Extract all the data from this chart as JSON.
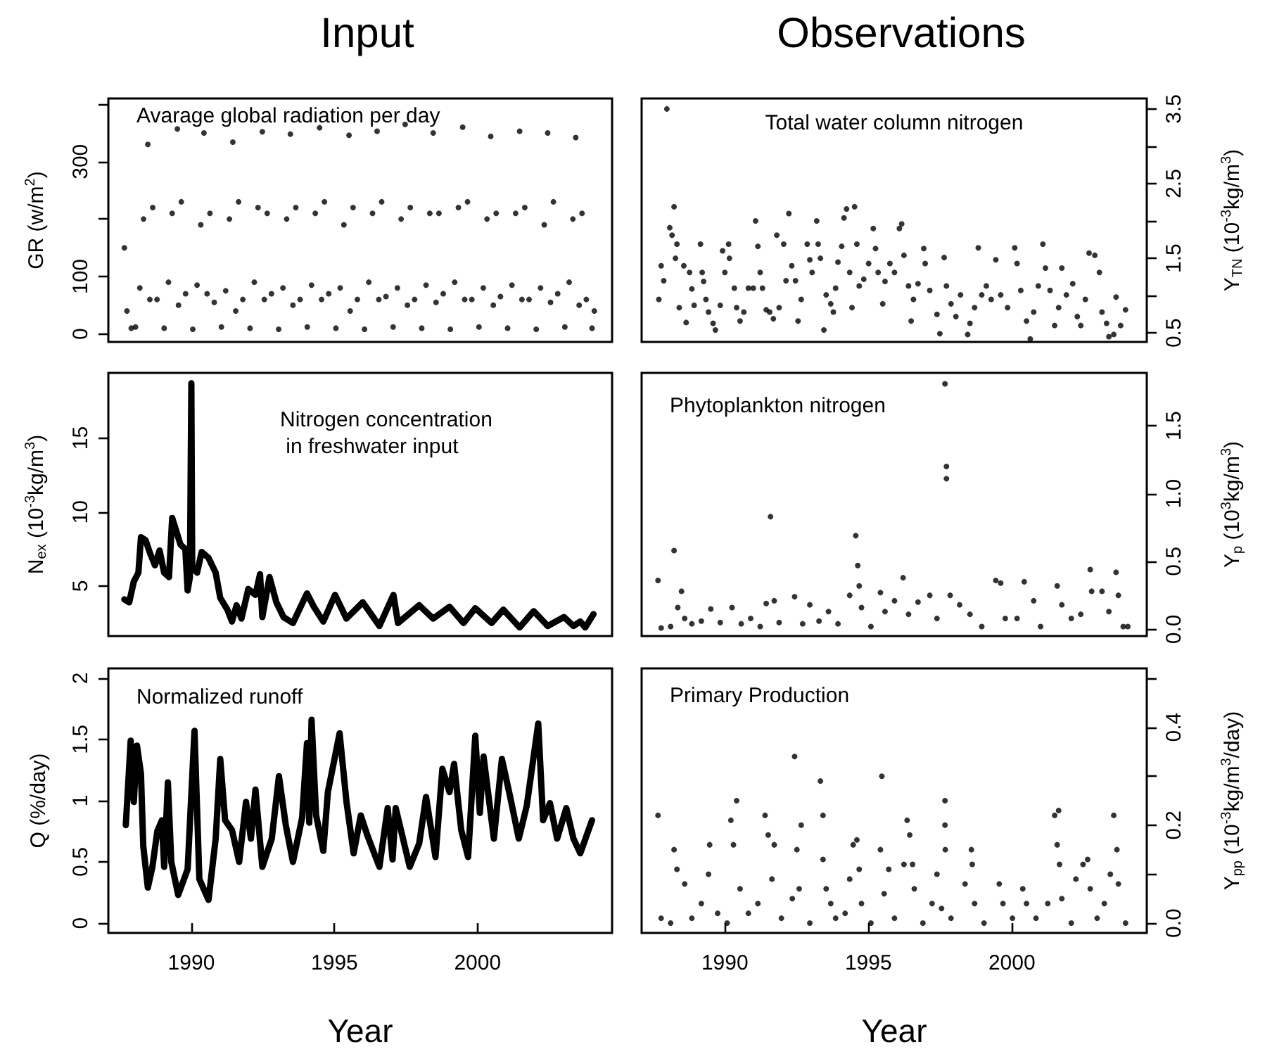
{
  "chart_data": [
    {
      "type": "scatter",
      "title": "Input",
      "ylabel": "GR (w/m$^{2}$)",
      "annotations": [
        "Avarage global radiation per day"
      ],
      "marker": "circle",
      "tick_labels": "y",
      "xlim": [
        1987.1,
        2004.7
      ],
      "ylim": [
        -14,
        410
      ],
      "yticks": [
        0,
        100,
        {
          "value": 200,
          "label": null
        },
        300,
        {
          "value": 400,
          "label": null
        }
      ],
      "x": [
        1987.66,
        1987.75,
        1987.9,
        1988.05,
        1988.2,
        1988.33,
        1988.48,
        1988.55,
        1988.65,
        1988.8,
        1989.05,
        1989.2,
        1989.33,
        1989.51,
        1989.55,
        1989.65,
        1989.8,
        1990.05,
        1990.2,
        1990.33,
        1990.44,
        1990.55,
        1990.65,
        1990.8,
        1991.05,
        1991.2,
        1991.33,
        1991.45,
        1991.55,
        1991.65,
        1991.8,
        1992.05,
        1992.2,
        1992.33,
        1992.48,
        1992.55,
        1992.65,
        1992.8,
        1993.05,
        1993.2,
        1993.33,
        1993.46,
        1993.55,
        1993.65,
        1993.8,
        1994.05,
        1994.2,
        1994.33,
        1994.48,
        1994.55,
        1994.65,
        1994.8,
        1995.05,
        1995.2,
        1995.33,
        1995.51,
        1995.55,
        1995.65,
        1995.8,
        1996.05,
        1996.2,
        1996.33,
        1996.49,
        1996.55,
        1996.65,
        1996.8,
        1997.05,
        1997.2,
        1997.33,
        1997.47,
        1997.55,
        1997.65,
        1997.8,
        1998.05,
        1998.2,
        1998.33,
        1998.45,
        1998.55,
        1998.65,
        1998.8,
        1999.05,
        1999.2,
        1999.33,
        1999.48,
        1999.55,
        1999.65,
        1999.8,
        2000.05,
        2000.2,
        2000.33,
        2000.46,
        2000.55,
        2000.65,
        2000.8,
        2001.05,
        2001.2,
        2001.33,
        2001.47,
        2001.55,
        2001.65,
        2001.8,
        2002.05,
        2002.2,
        2002.33,
        2002.45,
        2002.55,
        2002.65,
        2002.8,
        2003.05,
        2003.2,
        2003.33,
        2003.43,
        2003.55,
        2003.65,
        2003.8,
        2004.0,
        2004.08
      ],
      "series": [
        {
          "color": "#000000",
          "values": [
            150,
            40,
            10,
            12,
            80,
            200,
            330,
            60,
            220,
            60,
            10,
            90,
            210,
            357,
            50,
            230,
            70,
            8,
            85,
            190,
            350,
            70,
            210,
            55,
            12,
            75,
            200,
            334,
            40,
            230,
            60,
            10,
            90,
            220,
            352,
            60,
            210,
            70,
            8,
            80,
            200,
            348,
            50,
            220,
            60,
            12,
            85,
            210,
            359,
            60,
            230,
            70,
            10,
            80,
            190,
            346,
            40,
            220,
            60,
            8,
            90,
            210,
            353,
            60,
            230,
            65,
            12,
            80,
            200,
            365,
            50,
            220,
            60,
            10,
            85,
            210,
            350,
            55,
            210,
            70,
            8,
            90,
            220,
            360,
            60,
            230,
            60,
            12,
            80,
            200,
            344,
            50,
            210,
            65,
            10,
            85,
            210,
            353,
            60,
            220,
            60,
            8,
            80,
            190,
            350,
            55,
            230,
            70,
            12,
            90,
            200,
            342,
            50,
            210,
            60,
            10,
            40
          ]
        }
      ]
    },
    {
      "type": "scatter",
      "title": "Observations",
      "y2label": "Y$_{TN}$ (10$^{-3}$kg/m$^{3}$)",
      "annotations": [
        "Total water column nitrogen"
      ],
      "marker": "circle",
      "tick_labels": "y",
      "xlim": [
        1987.1,
        2004.7
      ],
      "y2lim": [
        0.38,
        3.64
      ],
      "y2ticks": [
        0.5,
        {
          "value": 1,
          "label": null
        },
        1.5,
        {
          "value": 2,
          "label": null
        },
        2.5,
        {
          "value": 3,
          "label": null
        },
        3.5
      ],
      "x": [
        1987.7,
        1987.78,
        1987.87,
        1987.98,
        1988.08,
        1988.16,
        1988.23,
        1988.33,
        1988.28,
        1988.41,
        1988.57,
        1988.65,
        1988.77,
        1988.85,
        1988.93,
        1989.15,
        1989.21,
        1989.26,
        1989.34,
        1989.43,
        1989.59,
        1989.67,
        1989.84,
        1989.92,
        1990.0,
        1990.13,
        1990.16,
        1990.33,
        1990.41,
        1990.53,
        1990.66,
        1990.82,
        1990.99,
        1991.07,
        1991.15,
        1991.23,
        1991.31,
        1991.44,
        1991.56,
        1991.69,
        1991.81,
        1991.89,
        1992.05,
        1992.13,
        1992.23,
        1992.33,
        1992.46,
        1992.55,
        1992.66,
        1992.87,
        1992.96,
        1993.04,
        1993.2,
        1993.25,
        1993.33,
        1993.45,
        1993.53,
        1993.69,
        1993.78,
        1993.86,
        1993.94,
        1994.07,
        1994.15,
        1994.24,
        1994.35,
        1994.43,
        1994.52,
        1994.6,
        1994.68,
        1994.84,
        1995.01,
        1995.17,
        1995.25,
        1995.34,
        1995.5,
        1995.58,
        1995.75,
        1995.91,
        1996.08,
        1996.16,
        1996.24,
        1996.4,
        1996.49,
        1996.57,
        1996.73,
        1996.93,
        1996.98,
        1997.14,
        1997.39,
        1997.49,
        1997.64,
        1997.72,
        1997.88,
        1998.05,
        1998.21,
        1998.46,
        1998.54,
        1998.7,
        1998.83,
        1998.95,
        1999.11,
        1999.28,
        1999.44,
        1999.61,
        1999.85,
        2000.1,
        2000.18,
        2000.31,
        2000.51,
        2000.64,
        2000.76,
        2000.92,
        2001.08,
        2001.17,
        2001.33,
        2001.49,
        2001.63,
        2001.74,
        2001.9,
        2002.12,
        2002.28,
        2002.4,
        2002.56,
        2002.69,
        2002.89,
        2003.05,
        2003.14,
        2003.3,
        2003.38,
        2003.55,
        2003.63,
        2003.79,
        2003.96
      ],
      "series": [
        {
          "axis": "y2",
          "color": "#000000",
          "values": [
            0.95,
            1.4,
            1.2,
            3.5,
            1.91,
            1.81,
            2.19,
            1.69,
            1.5,
            0.84,
            1.4,
            0.64,
            1.31,
            1.09,
            0.87,
            1.69,
            1.31,
            1.19,
            0.95,
            0.78,
            0.63,
            0.54,
            0.87,
            1.6,
            1.31,
            1.69,
            1.5,
            1.1,
            0.84,
            0.66,
            0.78,
            1.1,
            1.1,
            2.0,
            1.66,
            1.31,
            1.1,
            0.81,
            0.78,
            0.69,
            1.81,
            0.84,
            1.69,
            1.2,
            2.1,
            1.4,
            1.2,
            0.66,
            0.95,
            1.69,
            1.48,
            1.31,
            2.0,
            1.69,
            1.5,
            0.54,
            1.01,
            0.89,
            0.78,
            1.1,
            1.45,
            1.66,
            2.04,
            2.16,
            1.31,
            0.84,
            2.19,
            1.69,
            1.13,
            1.22,
            1.43,
            1.9,
            1.63,
            1.31,
            0.89,
            1.19,
            1.43,
            1.31,
            1.9,
            1.96,
            1.54,
            1.13,
            0.66,
            0.95,
            1.16,
            1.63,
            1.43,
            1.07,
            0.75,
            0.49,
            1.51,
            1.13,
            0.89,
            0.72,
            1.01,
            0.48,
            0.63,
            0.84,
            1.64,
            1.01,
            1.13,
            0.95,
            1.48,
            1.01,
            0.84,
            1.64,
            1.43,
            1.07,
            0.66,
            0.42,
            0.78,
            1.13,
            1.69,
            1.37,
            1.07,
            0.6,
            0.84,
            1.37,
            1.01,
            1.16,
            0.72,
            0.6,
            0.95,
            1.57,
            1.54,
            1.31,
            0.78,
            0.63,
            0.45,
            0.48,
            0.98,
            0.6,
            0.81
          ]
        }
      ]
    },
    {
      "type": "line",
      "ylabel": "N$_{ex}$ (10$^{-3}$kg/m$^{3}$)",
      "annotations": [
        "Nitrogen concentration\n in freshwater input"
      ],
      "line_style": "solid",
      "tick_labels": "y",
      "xlim": [
        1987.1,
        2004.7
      ],
      "ylim": [
        1.62,
        19.4
      ],
      "yticks": [
        5,
        10,
        15
      ],
      "x": [
        1987.66,
        1987.83,
        1987.99,
        1988.15,
        1988.24,
        1988.4,
        1988.56,
        1988.73,
        1988.89,
        1989.05,
        1989.22,
        1989.33,
        1989.46,
        1989.62,
        1989.79,
        1989.87,
        1989.95,
        1990.0,
        1990.03,
        1990.2,
        1990.36,
        1990.6,
        1990.85,
        1991.01,
        1991.26,
        1991.42,
        1991.58,
        1991.75,
        1991.99,
        1992.24,
        1992.4,
        1992.48,
        1992.73,
        1992.97,
        1993.22,
        1993.55,
        1994.04,
        1994.28,
        1994.61,
        1995.02,
        1995.42,
        1995.99,
        1996.57,
        1997.06,
        1997.22,
        1997.96,
        1998.45,
        1999.02,
        1999.51,
        1999.92,
        2000.49,
        2000.9,
        2001.47,
        2001.96,
        2002.45,
        2003.02,
        2003.35,
        2003.59,
        2003.76,
        2004.05
      ],
      "series": [
        {
          "color": "#000000",
          "values": [
            4.1,
            3.9,
            5.3,
            5.9,
            8.3,
            8.1,
            7.2,
            6.4,
            7.4,
            5.9,
            5.6,
            9.6,
            8.8,
            7.8,
            7.5,
            4.7,
            5.6,
            18.7,
            6.3,
            5.9,
            7.3,
            6.9,
            5.9,
            4.2,
            3.4,
            2.6,
            3.7,
            2.8,
            4.8,
            4.4,
            5.8,
            2.9,
            5.6,
            3.9,
            2.9,
            2.5,
            4.5,
            3.6,
            2.6,
            4.4,
            2.8,
            3.9,
            2.3,
            4.4,
            2.5,
            3.7,
            2.8,
            3.6,
            2.5,
            3.5,
            2.5,
            3.4,
            2.2,
            3.3,
            2.3,
            2.9,
            2.3,
            2.6,
            2.2,
            3.1
          ]
        }
      ]
    },
    {
      "type": "scatter",
      "y2label": "Y$_{p}$ (10$^{3}$kg/m$^{3}$)",
      "annotations": [
        "Phytoplankton nitrogen"
      ],
      "marker": "circle",
      "tick_labels": "y",
      "xlim": [
        1987.1,
        2004.7
      ],
      "y2lim": [
        -0.05,
        1.89
      ],
      "y2ticks": [
        {
          "value": 0,
          "label": "0.0"
        },
        0.5,
        {
          "value": 1,
          "label": "1.0"
        },
        1.5
      ],
      "x": [
        1987.67,
        1987.78,
        1988.11,
        1988.23,
        1988.36,
        1988.49,
        1988.6,
        1988.85,
        1989.18,
        1989.51,
        1989.84,
        1990.25,
        1990.57,
        1990.9,
        1991.23,
        1991.44,
        1991.59,
        1991.72,
        1991.89,
        1992.43,
        1992.71,
        1992.96,
        1993.28,
        1993.61,
        1993.94,
        1994.35,
        1994.56,
        1994.63,
        1994.68,
        1994.76,
        1995.09,
        1995.42,
        1995.58,
        1995.91,
        1996.21,
        1996.4,
        1996.73,
        1997.14,
        1997.39,
        1997.67,
        1997.72,
        1997.72,
        1997.85,
        1998.18,
        1998.54,
        1998.95,
        1999.44,
        1999.61,
        1999.77,
        2000.18,
        2000.43,
        2000.76,
        2001.0,
        2001.58,
        2001.74,
        2002.07,
        2002.4,
        2002.73,
        2002.78,
        2003.14,
        2003.38,
        2003.63,
        2003.71,
        2003.88,
        2004.04
      ],
      "series": [
        {
          "axis": "y2",
          "color": "#000000",
          "values": [
            0.36,
            0.01,
            0.02,
            0.58,
            0.16,
            0.28,
            0.08,
            0.04,
            0.06,
            0.15,
            0.05,
            0.16,
            0.04,
            0.08,
            0.02,
            0.19,
            0.83,
            0.21,
            0.05,
            0.24,
            0.04,
            0.18,
            0.06,
            0.13,
            0.04,
            0.25,
            0.69,
            0.47,
            0.32,
            0.16,
            0.02,
            0.27,
            0.13,
            0.21,
            0.38,
            0.11,
            0.2,
            0.25,
            0.08,
            1.81,
            1.2,
            1.11,
            0.25,
            0.18,
            0.11,
            0.02,
            0.36,
            0.34,
            0.08,
            0.08,
            0.35,
            0.21,
            0.02,
            0.32,
            0.18,
            0.08,
            0.11,
            0.44,
            0.28,
            0.28,
            0.13,
            0.42,
            0.25,
            0.02,
            0.02
          ]
        }
      ]
    },
    {
      "type": "line",
      "ylabel": "Q (%/day)",
      "xlabel": "Year",
      "annotations": [
        "Normalized runoff"
      ],
      "line_style": "solid",
      "xlim": [
        1987.1,
        2004.7
      ],
      "xticks": [
        1990,
        1995,
        2000
      ],
      "ylim": [
        -0.08,
        2.08
      ],
      "yticks": [
        0,
        0.5,
        1,
        1.5,
        2
      ],
      "x": [
        1987.71,
        1987.88,
        1987.99,
        1988.1,
        1988.24,
        1988.32,
        1988.48,
        1988.64,
        1988.81,
        1988.97,
        1989.05,
        1989.18,
        1989.3,
        1989.54,
        1989.87,
        1990.11,
        1990.28,
        1990.6,
        1990.85,
        1991.01,
        1991.18,
        1991.42,
        1991.67,
        1991.91,
        1992.08,
        1992.24,
        1992.48,
        1992.81,
        1993.06,
        1993.3,
        1993.55,
        1993.87,
        1994.04,
        1994.12,
        1994.2,
        1994.36,
        1994.61,
        1994.77,
        1995.18,
        1995.42,
        1995.67,
        1995.92,
        1996.16,
        1996.57,
        1996.86,
        1997.03,
        1997.14,
        1997.63,
        1997.96,
        1998.2,
        1998.53,
        1998.77,
        1999.02,
        1999.18,
        1999.43,
        1999.67,
        1999.92,
        2000.08,
        2000.21,
        2000.57,
        2000.85,
        2001.14,
        2001.44,
        2001.72,
        2002.12,
        2002.29,
        2002.53,
        2002.78,
        2003.1,
        2003.35,
        2003.59,
        2004.0
      ],
      "series": [
        {
          "color": "#000000",
          "values": [
            0.8,
            1.49,
            0.99,
            1.45,
            1.22,
            0.63,
            0.29,
            0.46,
            0.75,
            0.84,
            0.46,
            1.15,
            0.5,
            0.23,
            0.44,
            1.57,
            0.36,
            0.19,
            0.69,
            1.34,
            0.84,
            0.76,
            0.5,
            0.99,
            0.69,
            1.09,
            0.46,
            0.69,
            1.2,
            0.8,
            0.5,
            0.86,
            1.47,
            0.82,
            1.66,
            0.88,
            0.59,
            1.07,
            1.55,
            0.99,
            0.57,
            0.88,
            0.71,
            0.46,
            0.94,
            0.52,
            0.94,
            0.46,
            0.65,
            1.03,
            0.54,
            1.26,
            1.07,
            1.3,
            0.76,
            0.54,
            1.53,
            0.9,
            1.36,
            0.69,
            1.34,
            1.03,
            0.69,
            0.96,
            1.63,
            0.84,
            0.98,
            0.69,
            0.94,
            0.69,
            0.57,
            0.84
          ]
        }
      ]
    },
    {
      "type": "scatter",
      "y2label": "Y$_{pp}$ (10$^{-3}$kg/m$^{3}$/day)",
      "xlabel": "Year",
      "annotations": [
        "Primary Production"
      ],
      "marker": "circle",
      "xlim": [
        1987.1,
        2004.7
      ],
      "xticks": [
        1990,
        1995,
        2000
      ],
      "y2lim": [
        -0.02,
        0.52
      ],
      "y2ticks": [
        {
          "value": 0,
          "label": "0.0"
        },
        {
          "value": 0.1,
          "label": null
        },
        0.2,
        {
          "value": 0.3,
          "label": null
        },
        0.4,
        {
          "value": 0.5,
          "label": null
        }
      ],
      "x": [
        1987.67,
        1987.78,
        1988.11,
        1988.23,
        1988.33,
        1988.6,
        1988.85,
        1989.18,
        1989.47,
        1989.43,
        1989.75,
        1990.08,
        1990.21,
        1990.3,
        1990.41,
        1990.53,
        1990.82,
        1991.15,
        1991.4,
        1991.51,
        1991.72,
        1991.64,
        1991.97,
        1992.35,
        1992.43,
        1992.51,
        1992.59,
        1992.66,
        1992.96,
        1993.33,
        1993.42,
        1993.42,
        1993.53,
        1993.69,
        1993.86,
        1994.19,
        1994.35,
        1994.47,
        1994.6,
        1994.68,
        1994.76,
        1995.09,
        1995.42,
        1995.47,
        1995.55,
        1995.71,
        1995.91,
        1996.24,
        1996.35,
        1996.44,
        1996.54,
        1996.6,
        1996.9,
        1997.22,
        1997.39,
        1997.67,
        1997.67,
        1997.68,
        1997.55,
        1997.88,
        1998.37,
        1998.59,
        1998.62,
        1998.7,
        1999.03,
        1999.56,
        1999.69,
        2000.02,
        2000.38,
        2000.51,
        2000.84,
        2001.25,
        2001.49,
        2001.63,
        2001.58,
        2001.66,
        2001.74,
        2002.07,
        2002.23,
        2002.48,
        2002.64,
        2002.73,
        2002.97,
        2003.22,
        2003.43,
        2003.55,
        2003.66,
        2003.71,
        2003.96
      ],
      "series": [
        {
          "axis": "y2",
          "color": "#000000",
          "values": [
            0.22,
            0.01,
            0.0,
            0.15,
            0.11,
            0.08,
            0.01,
            0.04,
            0.16,
            0.1,
            0.02,
            0.0,
            0.21,
            0.16,
            0.25,
            0.07,
            0.02,
            0.04,
            0.22,
            0.18,
            0.16,
            0.09,
            0.01,
            0.05,
            0.34,
            0.15,
            0.07,
            0.2,
            0.0,
            0.29,
            0.22,
            0.13,
            0.07,
            0.04,
            0.01,
            0.02,
            0.09,
            0.16,
            0.17,
            0.11,
            0.04,
            0.0,
            0.15,
            0.3,
            0.06,
            0.11,
            0.01,
            0.12,
            0.21,
            0.18,
            0.12,
            0.07,
            0.0,
            0.04,
            0.1,
            0.25,
            0.2,
            0.15,
            0.03,
            0.01,
            0.08,
            0.15,
            0.12,
            0.04,
            0.0,
            0.08,
            0.04,
            0.01,
            0.07,
            0.04,
            0.01,
            0.04,
            0.22,
            0.23,
            0.16,
            0.12,
            0.05,
            0.0,
            0.09,
            0.12,
            0.13,
            0.07,
            0.01,
            0.04,
            0.1,
            0.22,
            0.15,
            0.08,
            0.0
          ]
        }
      ]
    }
  ]
}
